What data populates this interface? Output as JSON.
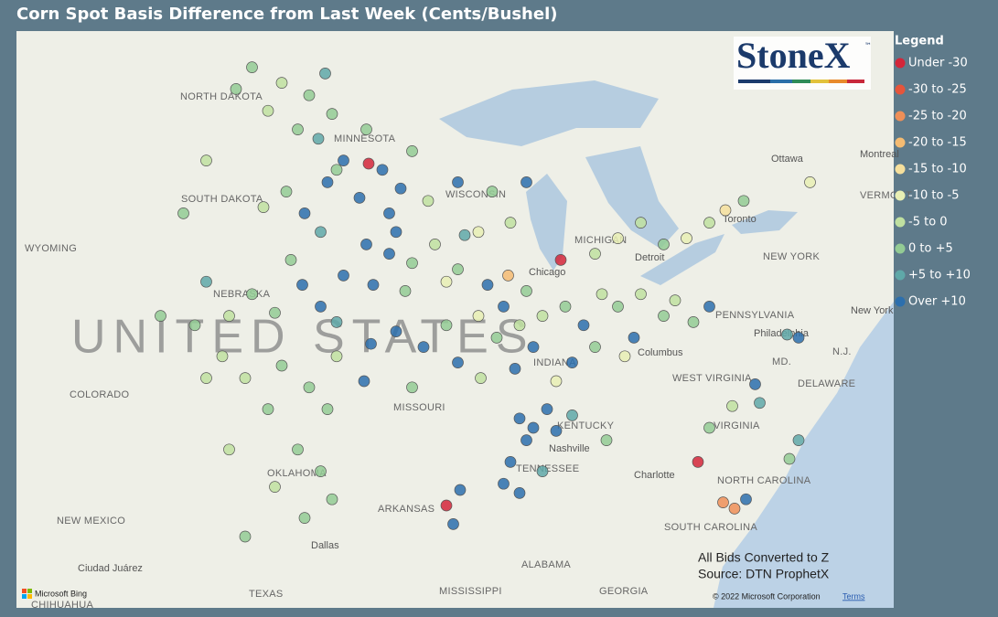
{
  "title": "Corn Spot Basis Difference from Last Week (Cents/Bushel)",
  "logo": "StoneX",
  "logo_mark": "™",
  "legend": {
    "title": "Legend",
    "entries": [
      {
        "label": "Under -30",
        "color": "#d3263a"
      },
      {
        "label": "-30 to -25",
        "color": "#e5553b"
      },
      {
        "label": "-25 to -20",
        "color": "#ef8f58"
      },
      {
        "label": "-20 to -15",
        "color": "#f4bb72"
      },
      {
        "label": "-15 to -10",
        "color": "#f5df9c"
      },
      {
        "label": "-10 to -5",
        "color": "#e8efb4"
      },
      {
        "label": "-5 to 0",
        "color": "#bfe0a0"
      },
      {
        "label": "0 to +5",
        "color": "#93cb94"
      },
      {
        "label": "+5 to +10",
        "color": "#5fa8a8"
      },
      {
        "label": "Over +10",
        "color": "#2c6fad"
      }
    ]
  },
  "notes": [
    "All Bids Converted to Z",
    "Source: DTN ProphetX"
  ],
  "copyright": "© 2022 Microsoft Corporation",
  "terms": "Terms",
  "bing": "Microsoft Bing",
  "map_labels": [
    "NORTH DAKOTA",
    "MINNESOTA",
    "SOUTH DAKOTA",
    "WISCONSIN",
    "WYOMING",
    "NEBRASKA",
    "UNITED STATES",
    "COLORADO",
    "MISSOURI",
    "KENTUCKY",
    "TENNESSEE",
    "OKLAHOMA",
    "ARKANSAS",
    "NEW MEXICO",
    "TEXAS",
    "MISSISSIPPI",
    "ALABAMA",
    "GEORGIA",
    "SOUTH CAROLINA",
    "NORTH CAROLINA",
    "VIRGINIA",
    "WEST VIRGINIA",
    "PENNSYLVANIA",
    "NEW YORK",
    "DELAWARE",
    "MD.",
    "N.J.",
    "VERMONT",
    "Ottawa",
    "Toronto",
    "Montreal",
    "New York",
    "Philadelphia",
    "Chicago",
    "Detroit",
    "Columbus",
    "Nashville",
    "Charlotte",
    "Dallas",
    "Ciudad Juárez",
    "CHIHUAHUA",
    "MICHIGAN",
    "INDIANA"
  ],
  "stations": [
    [
      -100.5,
      48.5,
      7
    ],
    [
      -99.2,
      48.0,
      6
    ],
    [
      -98.0,
      47.6,
      7
    ],
    [
      -97.3,
      48.3,
      8
    ],
    [
      -97.0,
      47.0,
      7
    ],
    [
      -99.8,
      47.1,
      6
    ],
    [
      -98.5,
      46.5,
      7
    ],
    [
      -101.2,
      47.8,
      7
    ],
    [
      -97.6,
      46.2,
      8
    ],
    [
      -96.5,
      45.5,
      9
    ],
    [
      -95.5,
      46.5,
      7
    ],
    [
      -94.8,
      45.2,
      9
    ],
    [
      -94.0,
      44.6,
      9
    ],
    [
      -95.8,
      44.3,
      9
    ],
    [
      -93.5,
      45.8,
      7
    ],
    [
      -92.8,
      44.2,
      6
    ],
    [
      -94.5,
      43.8,
      9
    ],
    [
      -95.4,
      45.4,
      0
    ],
    [
      -99.0,
      44.5,
      7
    ],
    [
      -98.2,
      43.8,
      9
    ],
    [
      -97.2,
      44.8,
      9
    ],
    [
      -100.0,
      44.0,
      6
    ],
    [
      -97.5,
      43.2,
      8
    ],
    [
      -96.8,
      45.2,
      7
    ],
    [
      -102.5,
      45.5,
      6
    ],
    [
      -103.5,
      43.8,
      7
    ],
    [
      -95.5,
      42.8,
      9
    ],
    [
      -94.5,
      42.5,
      9
    ],
    [
      -93.5,
      42.2,
      7
    ],
    [
      -92.5,
      42.8,
      6
    ],
    [
      -91.5,
      42.0,
      7
    ],
    [
      -95.2,
      41.5,
      9
    ],
    [
      -93.8,
      41.3,
      7
    ],
    [
      -92.0,
      41.6,
      5
    ],
    [
      -91.2,
      43.1,
      8
    ],
    [
      -94.2,
      43.2,
      9
    ],
    [
      -90.0,
      44.5,
      7
    ],
    [
      -89.2,
      43.5,
      6
    ],
    [
      -90.6,
      43.2,
      5
    ],
    [
      -88.5,
      44.8,
      9
    ],
    [
      -91.5,
      44.8,
      9
    ],
    [
      -100.5,
      41.2,
      7
    ],
    [
      -99.5,
      40.6,
      7
    ],
    [
      -98.3,
      41.5,
      9
    ],
    [
      -97.5,
      40.8,
      9
    ],
    [
      -96.5,
      41.8,
      9
    ],
    [
      -101.5,
      40.5,
      6
    ],
    [
      -98.8,
      42.3,
      7
    ],
    [
      -96.8,
      40.3,
      8
    ],
    [
      -102.5,
      41.6,
      8
    ],
    [
      -100.8,
      38.5,
      6
    ],
    [
      -99.2,
      38.9,
      7
    ],
    [
      -98.0,
      38.2,
      7
    ],
    [
      -96.8,
      39.2,
      6
    ],
    [
      -95.6,
      38.4,
      9
    ],
    [
      -97.2,
      37.5,
      7
    ],
    [
      -99.8,
      37.5,
      7
    ],
    [
      -101.8,
      39.2,
      6
    ],
    [
      -95.3,
      39.6,
      9
    ],
    [
      -103.0,
      40.2,
      7
    ],
    [
      -102.5,
      38.5,
      6
    ],
    [
      -104.5,
      40.5,
      7
    ],
    [
      -94.2,
      40.0,
      9
    ],
    [
      -93.0,
      39.5,
      9
    ],
    [
      -92.0,
      40.2,
      7
    ],
    [
      -91.5,
      39.0,
      9
    ],
    [
      -90.5,
      38.5,
      6
    ],
    [
      -93.5,
      38.2,
      7
    ],
    [
      -98.5,
      36.2,
      7
    ],
    [
      -97.5,
      35.5,
      7
    ],
    [
      -99.5,
      35.0,
      6
    ],
    [
      -97.0,
      34.6,
      7
    ],
    [
      -98.2,
      34.0,
      7
    ],
    [
      -101.5,
      36.2,
      6
    ],
    [
      -100.8,
      33.4,
      7
    ],
    [
      -90.2,
      41.5,
      9
    ],
    [
      -89.5,
      40.8,
      9
    ],
    [
      -88.8,
      40.2,
      6
    ],
    [
      -88.2,
      39.5,
      9
    ],
    [
      -89.8,
      39.8,
      7
    ],
    [
      -90.6,
      40.5,
      5
    ],
    [
      -88.5,
      41.3,
      7
    ],
    [
      -87.8,
      40.5,
      6
    ],
    [
      -89.0,
      38.8,
      9
    ],
    [
      -89.3,
      41.8,
      3
    ],
    [
      -86.8,
      40.8,
      7
    ],
    [
      -86.0,
      40.2,
      9
    ],
    [
      -85.5,
      39.5,
      7
    ],
    [
      -86.5,
      39.0,
      9
    ],
    [
      -87.2,
      38.4,
      5
    ],
    [
      -85.2,
      41.2,
      6
    ],
    [
      -87.0,
      42.3,
      0
    ],
    [
      -88.8,
      37.2,
      9
    ],
    [
      -88.2,
      36.9,
      9
    ],
    [
      -87.6,
      37.5,
      9
    ],
    [
      -88.5,
      36.5,
      9
    ],
    [
      -87.2,
      36.8,
      9
    ],
    [
      -86.5,
      37.3,
      8
    ],
    [
      -89.2,
      35.8,
      9
    ],
    [
      -88.8,
      34.8,
      9
    ],
    [
      -89.5,
      35.1,
      9
    ],
    [
      -87.8,
      35.5,
      8
    ],
    [
      -85.0,
      36.5,
      7
    ],
    [
      -92.0,
      34.4,
      0
    ],
    [
      -91.4,
      34.9,
      9
    ],
    [
      -91.7,
      33.8,
      9
    ],
    [
      -84.5,
      40.8,
      7
    ],
    [
      -83.5,
      41.2,
      6
    ],
    [
      -82.5,
      40.5,
      7
    ],
    [
      -83.8,
      39.8,
      9
    ],
    [
      -82.0,
      41.0,
      6
    ],
    [
      -81.2,
      40.3,
      7
    ],
    [
      -84.2,
      39.2,
      5
    ],
    [
      -80.5,
      40.8,
      9
    ],
    [
      -85.5,
      42.5,
      6
    ],
    [
      -84.5,
      43.0,
      5
    ],
    [
      -83.5,
      43.5,
      6
    ],
    [
      -82.5,
      42.8,
      7
    ],
    [
      -81.5,
      43.0,
      5
    ],
    [
      -80.5,
      43.5,
      6
    ],
    [
      -79.8,
      43.9,
      4
    ],
    [
      -79.0,
      44.2,
      7
    ],
    [
      -77.1,
      39.9,
      8
    ],
    [
      -76.6,
      39.8,
      9
    ],
    [
      -78.5,
      38.3,
      9
    ],
    [
      -78.3,
      37.7,
      8
    ],
    [
      -81.0,
      35.8,
      0
    ],
    [
      -79.9,
      34.5,
      2
    ],
    [
      -79.4,
      34.3,
      2
    ],
    [
      -78.9,
      34.6,
      9
    ],
    [
      -77.0,
      35.9,
      7
    ],
    [
      -76.6,
      36.5,
      8
    ],
    [
      -79.5,
      37.6,
      6
    ],
    [
      -80.5,
      36.9,
      7
    ],
    [
      -76.1,
      44.8,
      5
    ]
  ]
}
